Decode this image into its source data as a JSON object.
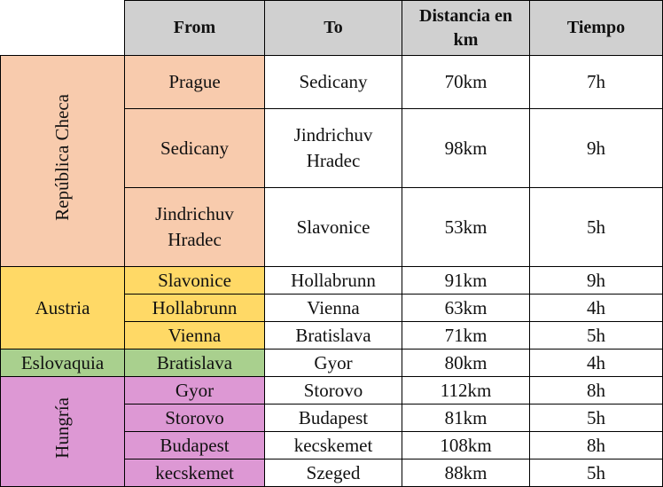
{
  "table": {
    "columns": [
      "From",
      "To",
      "Distancia en km",
      "Tiempo"
    ],
    "groups": [
      {
        "country": "República Checa",
        "color": "#f8cbad",
        "vertical": true,
        "rows": [
          [
            "Prague",
            "Sedicany",
            "70km",
            "7h"
          ],
          [
            "Sedicany",
            "Jindrichuv Hradec",
            "98km",
            "9h"
          ],
          [
            "Jindrichuv Hradec",
            "Slavonice",
            "53km",
            "5h"
          ]
        ]
      },
      {
        "country": "Austria",
        "color": "#ffd966",
        "vertical": false,
        "rows": [
          [
            "Slavonice",
            "Hollabrunn",
            "91km",
            "9h"
          ],
          [
            "Hollabrunn",
            "Vienna",
            "63km",
            "4h"
          ],
          [
            "Vienna",
            "Bratislava",
            "71km",
            "5h"
          ]
        ]
      },
      {
        "country": "Eslovaquia",
        "color": "#a9d08e",
        "vertical": false,
        "rows": [
          [
            "Bratislava",
            "Gyor",
            "80km",
            "4h"
          ]
        ]
      },
      {
        "country": "Hungría",
        "color": "#dd98d4",
        "vertical": true,
        "rows": [
          [
            "Gyor",
            "Storovo",
            "112km",
            "8h"
          ],
          [
            "Storovo",
            "Budapest",
            "81km",
            "5h"
          ],
          [
            "Budapest",
            "kecskemet",
            "108km",
            "8h"
          ],
          [
            "kecskemet",
            "Szeged",
            "88km",
            "5h"
          ]
        ]
      }
    ]
  }
}
